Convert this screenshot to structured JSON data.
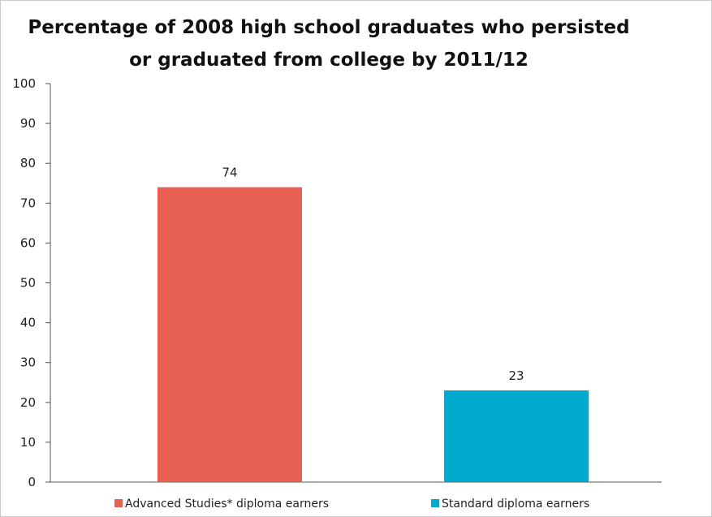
{
  "chart_data": {
    "type": "bar",
    "title": "Percentage of 2008 high school graduates who persisted\nor graduated from college by 2011/12",
    "xlabel": "",
    "ylabel": "",
    "ylim": [
      0,
      100
    ],
    "yticks": [
      0,
      10,
      20,
      30,
      40,
      50,
      60,
      70,
      80,
      90,
      100
    ],
    "grid": false,
    "legend_position": "bottom",
    "series": [
      {
        "name": "Advanced Studies* diploma earners",
        "values": [
          74
        ],
        "color": "#e86051"
      },
      {
        "name": "Standard diploma earners",
        "values": [
          23
        ],
        "color": "#00a9cd"
      }
    ]
  }
}
